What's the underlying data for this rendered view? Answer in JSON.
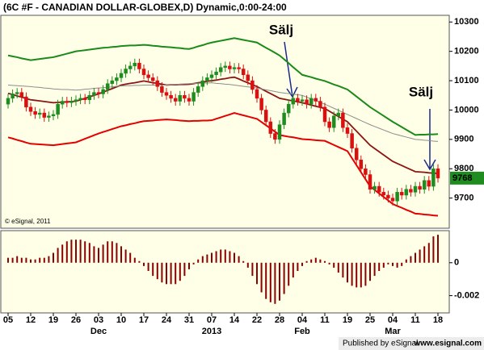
{
  "chart_data": [
    {
      "type": "candlestick",
      "title": "(6C #F - CANADIAN DOLLAR-GLOBEX,D) Dynamic,0:00-24:00",
      "categories": [
        "05",
        null,
        null,
        null,
        null,
        "12",
        null,
        null,
        null,
        null,
        "19",
        null,
        null,
        null,
        null,
        "26",
        null,
        null,
        null,
        null,
        "03",
        null,
        null,
        null,
        null,
        "10",
        null,
        null,
        null,
        null,
        "17",
        null,
        null,
        null,
        null,
        "24",
        null,
        null,
        null,
        null,
        "31",
        null,
        null,
        null,
        null,
        "07",
        null,
        null,
        null,
        null,
        "14",
        null,
        null,
        null,
        null,
        "22",
        null,
        null,
        null,
        null,
        "28",
        null,
        null,
        null,
        null,
        "04",
        null,
        null,
        null,
        null,
        "11",
        null,
        null,
        null,
        null,
        "19",
        null,
        null,
        null,
        null,
        "25",
        null,
        null,
        null,
        null,
        "04",
        null,
        null,
        null,
        null,
        "11",
        null,
        null,
        null,
        null,
        "18"
      ],
      "category_groups": [
        null,
        null,
        null,
        null,
        null,
        null,
        null,
        null,
        null,
        null,
        null,
        null,
        null,
        null,
        null,
        null,
        null,
        null,
        null,
        null,
        "Dec",
        null,
        null,
        null,
        null,
        null,
        null,
        null,
        null,
        null,
        null,
        null,
        null,
        null,
        null,
        null,
        null,
        null,
        null,
        null,
        null,
        null,
        null,
        null,
        null,
        "2013",
        null,
        null,
        null,
        null,
        null,
        null,
        null,
        null,
        null,
        null,
        null,
        null,
        null,
        null,
        null,
        null,
        null,
        null,
        null,
        "Feb",
        null,
        null,
        null,
        null,
        null,
        null,
        null,
        null,
        null,
        null,
        null,
        null,
        null,
        null,
        null,
        null,
        null,
        null,
        null,
        "Mar",
        null,
        null,
        null,
        null,
        null,
        null,
        null,
        null,
        null,
        null
      ],
      "opens": [
        10020,
        10040,
        10055,
        10060,
        10045,
        10010,
        9995,
        9985,
        9990,
        9975,
        9980,
        9985,
        10020,
        10030,
        10025,
        10030,
        10035,
        10040,
        10035,
        10050,
        10060,
        10055,
        10070,
        10090,
        10100,
        10110,
        10125,
        10140,
        10150,
        10160,
        10140,
        10120,
        10110,
        10100,
        10080,
        10060,
        10050,
        10040,
        10030,
        10050,
        10040,
        10030,
        10060,
        10080,
        10100,
        10110,
        10120,
        10130,
        10145,
        10150,
        10140,
        10145,
        10140,
        10120,
        10100,
        10070,
        10040,
        10000,
        9960,
        9920,
        9900,
        9950,
        9990,
        10020,
        10040,
        10030,
        10035,
        10020,
        10040,
        10030,
        10010,
        9960,
        9940,
        9980,
        9990,
        9940,
        9920,
        9870,
        9830,
        9800,
        9780,
        9730,
        9740,
        9720,
        9710,
        9700,
        9690,
        9720,
        9710,
        9730,
        9720,
        9740,
        9730,
        9760,
        9740,
        9800
      ],
      "highs": [
        10055,
        10070,
        10075,
        10075,
        10060,
        10025,
        10010,
        10005,
        10005,
        9995,
        10000,
        10035,
        10045,
        10045,
        10045,
        10050,
        10055,
        10055,
        10065,
        10075,
        10075,
        10085,
        10105,
        10115,
        10125,
        10140,
        10155,
        10165,
        10175,
        10175,
        10155,
        10135,
        10125,
        10115,
        10095,
        10075,
        10065,
        10055,
        10065,
        10065,
        10055,
        10075,
        10095,
        10115,
        10125,
        10135,
        10145,
        10160,
        10165,
        10165,
        10160,
        10160,
        10155,
        10135,
        10115,
        10085,
        10055,
        10015,
        9975,
        9935,
        9965,
        10005,
        10035,
        10055,
        10055,
        10050,
        10050,
        10055,
        10055,
        10045,
        10025,
        9975,
        9995,
        10005,
        10005,
        9955,
        9935,
        9885,
        9845,
        9815,
        9795,
        9755,
        9755,
        9735,
        9725,
        9715,
        9735,
        9735,
        9745,
        9745,
        9755,
        9755,
        9775,
        9775,
        9815,
        9815
      ],
      "lows": [
        10005,
        10025,
        10040,
        10030,
        9995,
        9980,
        9970,
        9970,
        9960,
        9960,
        9965,
        9970,
        10005,
        10010,
        10010,
        10015,
        10020,
        10020,
        10020,
        10035,
        10040,
        10040,
        10055,
        10075,
        10085,
        10095,
        10110,
        10125,
        10135,
        10125,
        10105,
        10095,
        10085,
        10065,
        10045,
        10035,
        10025,
        10015,
        10015,
        10025,
        10015,
        10015,
        10045,
        10065,
        10085,
        10095,
        10105,
        10115,
        10130,
        10125,
        10125,
        10125,
        10105,
        10085,
        10055,
        10025,
        9985,
        9945,
        9905,
        9885,
        9885,
        9935,
        9975,
        10005,
        10015,
        10015,
        10005,
        10005,
        10015,
        9995,
        9945,
        9925,
        9925,
        9965,
        9925,
        9905,
        9855,
        9815,
        9785,
        9765,
        9715,
        9715,
        9705,
        9695,
        9685,
        9675,
        9675,
        9695,
        9695,
        9705,
        9705,
        9715,
        9715,
        9725,
        9725,
        9753
      ],
      "closes": [
        10040,
        10055,
        10060,
        10045,
        10010,
        9995,
        9985,
        9990,
        9975,
        9980,
        9985,
        10020,
        10030,
        10025,
        10030,
        10035,
        10040,
        10035,
        10050,
        10060,
        10055,
        10070,
        10090,
        10100,
        10110,
        10125,
        10140,
        10150,
        10160,
        10140,
        10120,
        10110,
        10100,
        10080,
        10060,
        10050,
        10040,
        10030,
        10050,
        10040,
        10030,
        10060,
        10080,
        10100,
        10110,
        10120,
        10130,
        10145,
        10150,
        10140,
        10145,
        10140,
        10120,
        10100,
        10070,
        10040,
        10000,
        9960,
        9920,
        9900,
        9950,
        9990,
        10020,
        10040,
        10030,
        10035,
        10020,
        10040,
        10030,
        10010,
        9960,
        9940,
        9980,
        9990,
        9940,
        9920,
        9870,
        9830,
        9800,
        9780,
        9730,
        9740,
        9720,
        9710,
        9700,
        9690,
        9720,
        9710,
        9730,
        9720,
        9740,
        9730,
        9760,
        9740,
        9800,
        9768
      ],
      "up_color": "#1e8c1e",
      "down_color": "#d81010",
      "series": [
        {
          "color": "#1a8a1a",
          "values": [
            10186,
            10183,
            10180,
            10176,
            10173,
            10170,
            10172,
            10174,
            10176,
            10178,
            10180,
            10184,
            10188,
            10192,
            10196,
            10200,
            10202,
            10204,
            10206,
            10208,
            10210,
            10212,
            10213,
            10215,
            10216,
            10218,
            10219,
            10220,
            10220,
            10221,
            10222,
            10221,
            10219,
            10218,
            10216,
            10215,
            10214,
            10212,
            10211,
            10209,
            10208,
            10212,
            10217,
            10221,
            10226,
            10230,
            10233,
            10236,
            10239,
            10242,
            10245,
            10242,
            10239,
            10236,
            10233,
            10230,
            10221,
            10212,
            10204,
            10195,
            10186,
            10173,
            10160,
            10146,
            10133,
            10120,
            10116,
            10112,
            10107,
            10103,
            10099,
            10093,
            10087,
            10082,
            10076,
            10070,
            10058,
            10046,
            10034,
            10022,
            10010,
            10000,
            9990,
            9980,
            9970,
            9960,
            9951,
            9942,
            9933,
            9924,
            9915,
            9916,
            9916,
            9917,
            9917,
            9918
          ]
        },
        {
          "color": "#e40000",
          "values": [
            9907,
            9903,
            9898,
            9894,
            9889,
            9885,
            9884,
            9883,
            9882,
            9881,
            9880,
            9882,
            9884,
            9886,
            9888,
            9890,
            9896,
            9902,
            9908,
            9914,
            9920,
            9925,
            9930,
            9935,
            9940,
            9945,
            9948,
            9952,
            9955,
            9959,
            9962,
            9963,
            9964,
            9966,
            9967,
            9968,
            9967,
            9966,
            9964,
            9963,
            9962,
            9963,
            9963,
            9964,
            9964,
            9965,
            9970,
            9975,
            9980,
            9985,
            9990,
            9986,
            9982,
            9978,
            9974,
            9970,
            9959,
            9948,
            9937,
            9926,
            9915,
            9912,
            9909,
            9907,
            9904,
            9901,
            9900,
            9899,
            9897,
            9896,
            9895,
            9888,
            9881,
            9874,
            9867,
            9860,
            9836,
            9812,
            9788,
            9764,
            9740,
            9728,
            9716,
            9704,
            9692,
            9680,
            9673,
            9667,
            9660,
            9654,
            9647,
            9646,
            9644,
            9643,
            9641,
            9640
          ]
        },
        {
          "color": "#8b1414",
          "values": [
            10057,
            10053,
            10048,
            10044,
            10039,
            10035,
            10033,
            10031,
            10029,
            10027,
            10025,
            10026,
            10027,
            10028,
            10029,
            10030,
            10035,
            10040,
            10045,
            10050,
            10055,
            10061,
            10067,
            10073,
            10079,
            10085,
            10088,
            10091,
            10093,
            10096,
            10099,
            10096,
            10093,
            10091,
            10088,
            10085,
            10086,
            10086,
            10087,
            10087,
            10088,
            10090,
            10093,
            10095,
            10098,
            10100,
            10102,
            10105,
            10107,
            10110,
            10112,
            10106,
            10099,
            10093,
            10086,
            10080,
            10072,
            10064,
            10056,
            10048,
            10040,
            10037,
            10034,
            10031,
            10028,
            10025,
            10021,
            10017,
            10013,
            10009,
            10005,
            9996,
            9987,
            9978,
            9969,
            9960,
            9944,
            9928,
            9912,
            9896,
            9880,
            9869,
            9858,
            9847,
            9836,
            9825,
            9818,
            9811,
            9804,
            9797,
            9790,
            9789,
            9788,
            9786,
            9785,
            9784
          ]
        },
        {
          "color": "#8c8c8c",
          "values": [
            10085,
            10084,
            10083,
            10082,
            10081,
            10080,
            10078,
            10077,
            10075,
            10074,
            10072,
            10071,
            10070,
            10070,
            10069,
            10068,
            10069,
            10071,
            10072,
            10074,
            10075,
            10076,
            10078,
            10079,
            10081,
            10082,
            10083,
            10083,
            10084,
            10084,
            10085,
            10085,
            10085,
            10085,
            10085,
            10085,
            10086,
            10087,
            10088,
            10089,
            10090,
            10091,
            10091,
            10092,
            10092,
            10093,
            10091,
            10090,
            10088,
            10087,
            10085,
            10083,
            10081,
            10079,
            10077,
            10075,
            10072,
            10069,
            10066,
            10063,
            10060,
            10058,
            10056,
            10054,
            10052,
            10050,
            10044,
            10038,
            10032,
            10026,
            10020,
            10013,
            10006,
            9999,
            9992,
            9985,
            9978,
            9971,
            9964,
            9957,
            9950,
            9944,
            9938,
            9932,
            9926,
            9920,
            9916,
            9912,
            9908,
            9904,
            9900,
            9899,
            9897,
            9896,
            9894,
            9893
          ]
        }
      ],
      "ylim": [
        9600,
        10320
      ],
      "yticks": [
        9700,
        9800,
        9900,
        10000,
        10100,
        10200,
        10300
      ],
      "last_price": 9768,
      "last_price_color": "#1e8c1e",
      "annotations": [
        "Sälj",
        "Sälj"
      ],
      "annotation_color": "#1a2a8c",
      "watermark": "© eSignal, 2011"
    },
    {
      "type": "bar",
      "color": "#8b0000",
      "values": [
        0.0003,
        0.0003,
        0.0004,
        0.0003,
        0.0003,
        0.0002,
        0.0002,
        0.0003,
        0.0003,
        0.0004,
        0.0006,
        0.0009,
        0.0011,
        0.0013,
        0.0014,
        0.0014,
        0.0014,
        0.0013,
        0.0012,
        0.001,
        0.0009,
        0.0011,
        0.0013,
        0.0013,
        0.0012,
        0.001,
        0.0008,
        0.0006,
        0.0003,
        0.0001,
        -0.0002,
        -0.0005,
        -0.0008,
        -0.001,
        -0.0012,
        -0.0013,
        -0.0013,
        -0.0013,
        -0.0011,
        -0.0008,
        -0.0004,
        -0.0001,
        0.0002,
        0.0004,
        0.0005,
        0.0006,
        0.0007,
        0.0008,
        0.0008,
        0.0007,
        0.0006,
        0.0004,
        0.0001,
        -0.0003,
        -0.0008,
        -0.0013,
        -0.0018,
        -0.0022,
        -0.0024,
        -0.0025,
        -0.0023,
        -0.0019,
        -0.0014,
        -0.0009,
        -0.0005,
        -0.0002,
        0.0001,
        0.0002,
        0.0003,
        0.0002,
        0.0001,
        -0.0001,
        -0.0003,
        -0.0006,
        -0.0009,
        -0.0012,
        -0.0014,
        -0.0015,
        -0.0015,
        -0.0014,
        -0.0011,
        -0.0008,
        -0.0005,
        -0.0003,
        -0.0001,
        -0.0002,
        -0.0003,
        -0.0002,
        0.0002,
        0.0004,
        0.0006,
        0.0008,
        0.001,
        0.0012,
        0.0016,
        0.0017
      ],
      "ylim": [
        -0.003,
        0.0019
      ],
      "yticks": [
        -0.002,
        0
      ]
    }
  ],
  "footer": {
    "publisher": "Published by eSignal",
    "url": "www.esignal.com"
  }
}
